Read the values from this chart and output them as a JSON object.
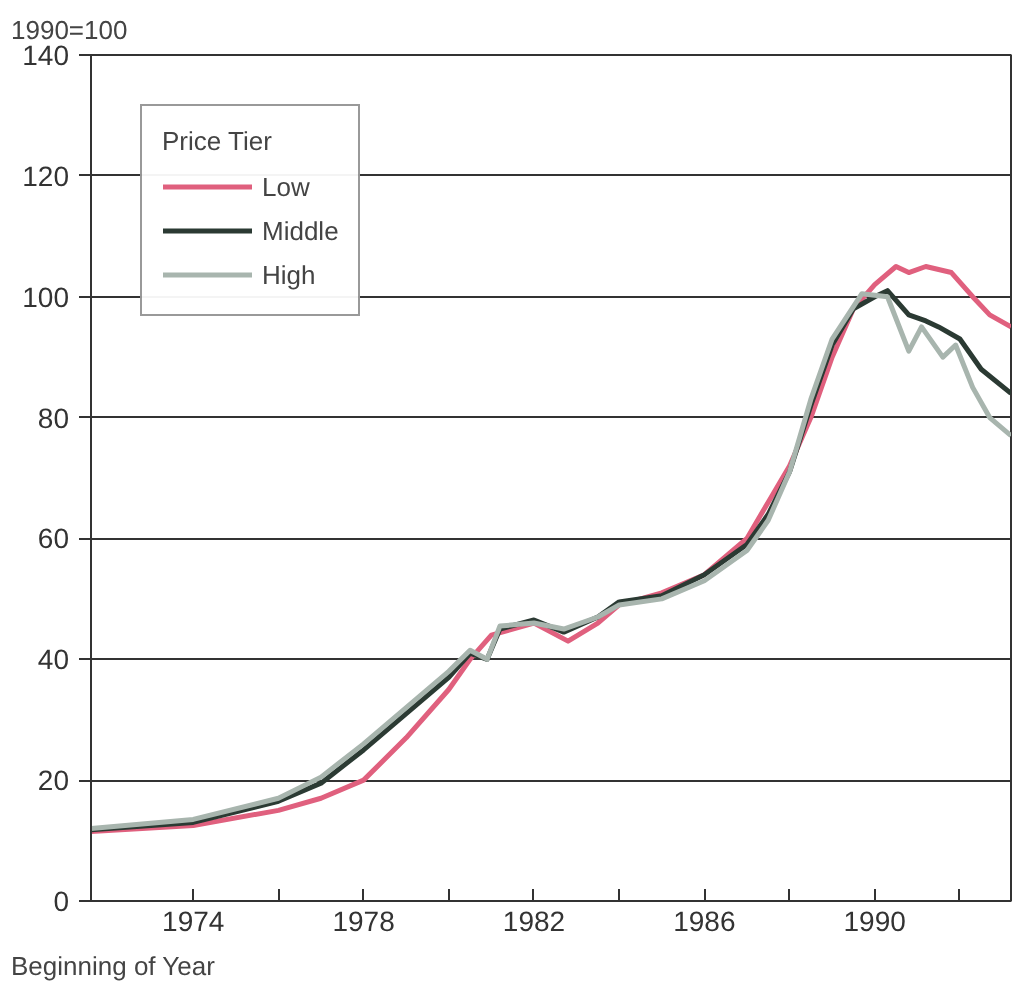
{
  "chart_data": {
    "type": "line",
    "ylabel": "1990=100",
    "xlabel": "Beginning of Year",
    "legend_title": "Price Tier",
    "legend": "top left",
    "grid": "y",
    "line_style": "solid",
    "xlim": [
      1971.6,
      1993.2
    ],
    "ylim": [
      0,
      140
    ],
    "xticks": [
      {
        "value": 1974,
        "label": "1974"
      },
      {
        "value": 1976,
        "label": null
      },
      {
        "value": 1978,
        "label": "1978"
      },
      {
        "value": 1980,
        "label": null
      },
      {
        "value": 1982,
        "label": "1982"
      },
      {
        "value": 1984,
        "label": null
      },
      {
        "value": 1986,
        "label": "1986"
      },
      {
        "value": 1988,
        "label": null
      },
      {
        "value": 1990,
        "label": "1990"
      },
      {
        "value": 1992,
        "label": null
      }
    ],
    "yticks": [
      0,
      20,
      40,
      60,
      80,
      100,
      120,
      140
    ],
    "series": [
      {
        "name": "Low",
        "color": "#e0607e",
        "x": [
          1971.6,
          1974,
          1976,
          1977,
          1978,
          1979,
          1980,
          1980.5,
          1981,
          1982,
          1982.8,
          1983.5,
          1984,
          1985,
          1986,
          1987,
          1987.5,
          1988,
          1988.5,
          1989,
          1989.5,
          1990,
          1990.5,
          1990.8,
          1991.2,
          1991.8,
          1992.3,
          1992.7,
          1993.2
        ],
        "values": [
          11.5,
          12.5,
          15,
          17,
          20,
          27,
          35,
          40,
          44,
          46,
          43,
          46,
          49,
          51,
          54,
          60,
          66,
          72,
          80,
          90,
          98,
          102,
          105,
          104,
          105,
          104,
          100,
          97,
          95
        ]
      },
      {
        "name": "Middle",
        "color": "#2b3a33",
        "x": [
          1971.6,
          1974,
          1976,
          1977,
          1978,
          1979,
          1980,
          1980.5,
          1980.9,
          1981.2,
          1982,
          1982.7,
          1983.5,
          1984,
          1985,
          1986,
          1987,
          1987.5,
          1988,
          1988.5,
          1989,
          1989.5,
          1990,
          1990.3,
          1990.8,
          1991.2,
          1991.5,
          1992,
          1992.5,
          1993.2
        ],
        "values": [
          11.8,
          13,
          16.5,
          19.5,
          25,
          31,
          37,
          41,
          40,
          45,
          46.5,
          44.5,
          47,
          49.5,
          50.5,
          54,
          59,
          64,
          71,
          82,
          92,
          98,
          100,
          101,
          97,
          96,
          95,
          93,
          88,
          84
        ]
      },
      {
        "name": "High",
        "color": "#a8b5ae",
        "x": [
          1971.6,
          1974,
          1976,
          1977,
          1978,
          1979,
          1980,
          1980.5,
          1980.9,
          1981.2,
          1982,
          1982.7,
          1983.5,
          1984,
          1985,
          1986,
          1987,
          1987.5,
          1988,
          1988.5,
          1989,
          1989.7,
          1990.3,
          1990.8,
          1991.1,
          1991.6,
          1991.9,
          1992.3,
          1992.7,
          1993.2
        ],
        "values": [
          12,
          13.5,
          17,
          20.5,
          26,
          32,
          38,
          41.5,
          40,
          45.5,
          46,
          45,
          47,
          49,
          50,
          53,
          58,
          63,
          71,
          83,
          93,
          100.5,
          100,
          91,
          95,
          90,
          92,
          85,
          80,
          77
        ]
      }
    ]
  }
}
